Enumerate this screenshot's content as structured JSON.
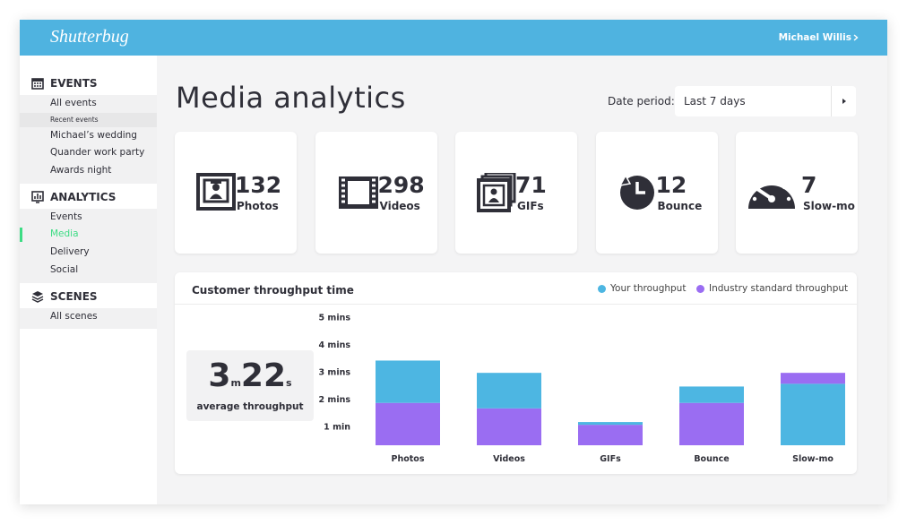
{
  "header": {
    "logo": "Shutterbug",
    "user": "Michael Willis"
  },
  "sidebar": {
    "sections": [
      {
        "title": "EVENTS",
        "items": [
          "All events"
        ],
        "subheading": "Recent events",
        "sub_items": [
          "Michael’s wedding",
          "Quander work party",
          "Awards night"
        ]
      },
      {
        "title": "ANALYTICS",
        "items": [
          "Events",
          "Media",
          "Delivery",
          "Social"
        ]
      },
      {
        "title": "SCENES",
        "items": [
          "All scenes"
        ]
      }
    ]
  },
  "page": {
    "title": "Media analytics",
    "date_label": "Date period:",
    "date_value": "Last 7 days"
  },
  "stats": [
    {
      "value": 132,
      "label": "Photos"
    },
    {
      "value": 298,
      "label": "Videos"
    },
    {
      "value": 71,
      "label": "GIFs"
    },
    {
      "value": 12,
      "label": "Bounce"
    },
    {
      "value": 7,
      "label": "Slow-mo"
    }
  ],
  "panel": {
    "title": "Customer throughput time",
    "average": {
      "minutes": 3,
      "minutes_unit": "m",
      "seconds": 22,
      "seconds_unit": "s",
      "label": "average throughput"
    }
  },
  "chart_data": {
    "type": "stacked-bar",
    "categories": [
      "Photos",
      "Videos",
      "GIFs",
      "Bounce",
      "Slow-mo"
    ],
    "series": [
      {
        "name": "Your throughput",
        "color": "#4db6e2",
        "values": [
          1.55,
          1.3,
          0.1,
          0.6,
          2.25
        ]
      },
      {
        "name": "Industry standard throughput",
        "color": "#9a6df2",
        "values": [
          1.55,
          1.35,
          0.75,
          1.55,
          0.4
        ]
      }
    ],
    "ylim": [
      0,
      5
    ],
    "yticks": [
      {
        "value": 1,
        "label": "1 min"
      },
      {
        "value": 2,
        "label": "2 mins"
      },
      {
        "value": 3,
        "label": "3 mins"
      },
      {
        "value": 4,
        "label": "4 mins"
      },
      {
        "value": 5,
        "label": "5 mins"
      }
    ],
    "grid": false
  }
}
